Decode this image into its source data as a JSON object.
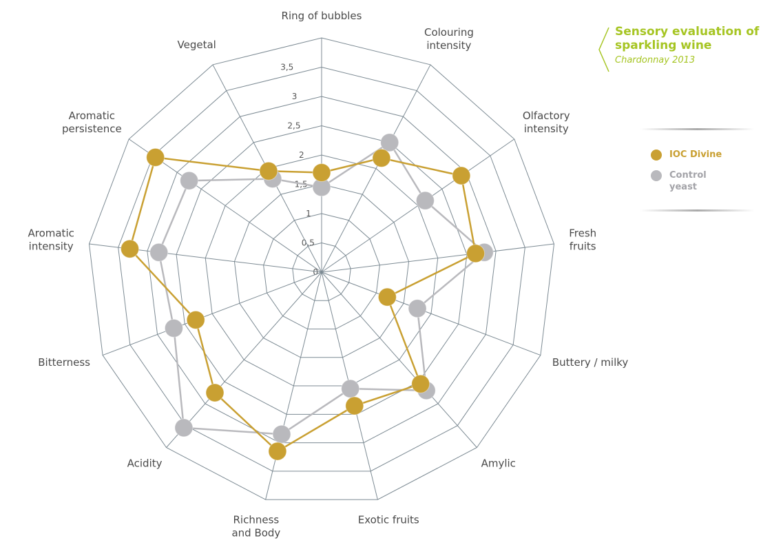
{
  "chart_data": {
    "type": "radar",
    "title": "Sensory evaluation of sparkling wine",
    "subtitle": "Chardonnay 2013",
    "categories": [
      "Ring of bubbles",
      "Colouring\nintensity",
      "Olfactory\nintensity",
      "Fresh\nfruits",
      "Buttery / milky",
      "Amylic",
      "Exotic fruits",
      "Richness\nand Body",
      "Acidity",
      "Bitterness",
      "Aromatic\nintensity",
      "Aromatic\npersistence",
      "Vegetal"
    ],
    "series": [
      {
        "name": "IOC Divine",
        "color": "#c9a032",
        "values": [
          1.7,
          2.2,
          2.9,
          2.65,
          1.2,
          2.55,
          2.35,
          3.15,
          2.75,
          2.3,
          3.3,
          3.45,
          1.95
        ]
      },
      {
        "name": "Control yeast",
        "color": "#b9b9bd",
        "values": [
          1.45,
          2.5,
          2.15,
          2.8,
          1.75,
          2.7,
          2.05,
          2.85,
          3.55,
          2.7,
          2.8,
          2.75,
          1.8
        ]
      }
    ],
    "ylim": [
      0,
      4
    ],
    "yticks": [
      0,
      {
        "value": 0.5,
        "label": "0,5"
      },
      1,
      {
        "value": 1.5,
        "label": "1,5"
      },
      2,
      {
        "value": 2.5,
        "label": "2,5"
      },
      3,
      {
        "value": 3.5,
        "label": "3,5"
      }
    ],
    "grid": true,
    "legend": "right"
  }
}
